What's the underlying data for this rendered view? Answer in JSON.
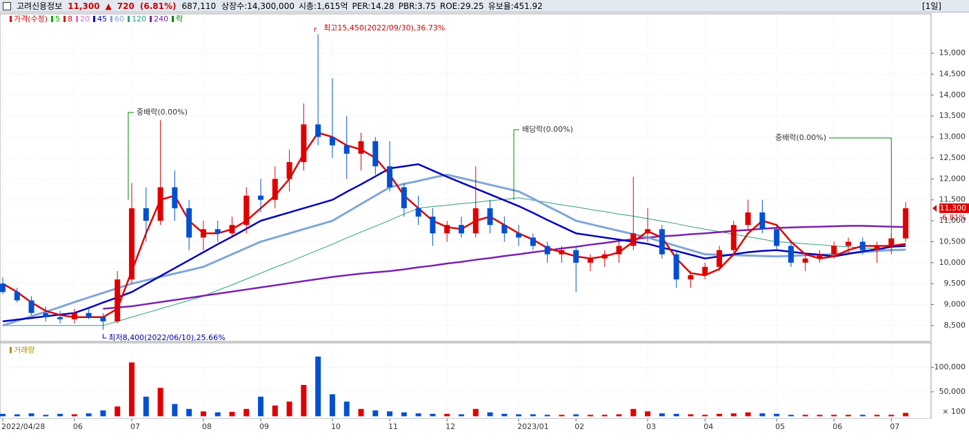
{
  "header": {
    "name": "고려신용정보",
    "price": "11,300",
    "arrow": "▲",
    "change": "720",
    "change_pct": "(6.81%)",
    "volume": "687,110",
    "stats": [
      "상장수:14,300,000",
      "시총:1,615억",
      "PER:14.28",
      "PBR:3.75",
      "ROE:29.25",
      "유보율:451.92"
    ],
    "period": "[1일]"
  },
  "chart_data": [
    {
      "type": "candlestick",
      "up_color": "#e00000",
      "down_color": "#0050d0",
      "legend": [
        {
          "label": "가격(수정)",
          "color": "#e00000"
        },
        {
          "label": "5",
          "color": "#00b000"
        },
        {
          "label": "8",
          "color": "#e00000"
        },
        {
          "label": "20",
          "color": "#e070d0"
        },
        {
          "label": "45",
          "color": "#0000c0"
        },
        {
          "label": "60",
          "color": "#7fa6d8"
        },
        {
          "label": "120",
          "color": "#2aa07a"
        },
        {
          "label": "240",
          "color": "#7a20b0"
        },
        {
          "label": "락",
          "color": "#008000"
        }
      ],
      "categories": [
        "2022/04/28",
        null,
        null,
        null,
        null,
        "06",
        null,
        null,
        null,
        "07",
        null,
        null,
        null,
        null,
        "08",
        null,
        null,
        null,
        "09",
        null,
        null,
        null,
        null,
        "10",
        null,
        null,
        null,
        "11",
        null,
        null,
        null,
        "12",
        null,
        null,
        null,
        null,
        "2023/01",
        null,
        null,
        null,
        "02",
        null,
        null,
        null,
        null,
        "03",
        null,
        null,
        null,
        "04",
        null,
        null,
        null,
        null,
        "05",
        null,
        null,
        null,
        "06",
        null,
        null,
        null,
        "07",
        null
      ],
      "open": [
        9500,
        9300,
        9100,
        8800,
        8700,
        8650,
        8800,
        8700,
        8600,
        9600,
        11300,
        11000,
        11800,
        11300,
        10600,
        10800,
        10700,
        10900,
        11600,
        11500,
        12000,
        12400,
        13300,
        13000,
        12800,
        12600,
        12900,
        12300,
        11800,
        11300,
        11100,
        10700,
        10900,
        10700,
        11300,
        10900,
        10700,
        10600,
        10400,
        10200,
        10300,
        10000,
        10100,
        10200,
        10400,
        10700,
        10800,
        10200,
        9600,
        9700,
        9900,
        10300,
        10900,
        11200,
        10800,
        10400,
        10000,
        10100,
        10200,
        10400,
        10500,
        10300,
        10400,
        10580
      ],
      "high": [
        9650,
        9400,
        9200,
        8950,
        8850,
        8900,
        8950,
        8800,
        9800,
        11900,
        11800,
        13400,
        12200,
        11500,
        11000,
        11000,
        11100,
        11800,
        12000,
        12300,
        12700,
        13800,
        15450,
        14400,
        13500,
        13100,
        13000,
        12900,
        11900,
        11600,
        11300,
        11000,
        11100,
        12300,
        11500,
        11100,
        10900,
        10700,
        10500,
        10400,
        10400,
        10200,
        10300,
        10500,
        12050,
        11300,
        10900,
        10300,
        9800,
        10000,
        10400,
        11000,
        11500,
        11500,
        10900,
        10500,
        10200,
        10300,
        10500,
        10600,
        10600,
        10500,
        10700,
        11450
      ],
      "low": [
        9250,
        9050,
        8750,
        8600,
        8550,
        8550,
        8650,
        8400,
        8550,
        9500,
        10500,
        10900,
        11000,
        10300,
        10300,
        10500,
        10600,
        10700,
        11200,
        11300,
        11700,
        12200,
        12800,
        12500,
        12000,
        12200,
        12100,
        11700,
        11100,
        10900,
        10400,
        10500,
        10600,
        10600,
        10700,
        10500,
        10400,
        10300,
        10000,
        10000,
        9300,
        9800,
        9900,
        10000,
        10300,
        10500,
        10100,
        9400,
        9400,
        9600,
        9800,
        10200,
        10800,
        10700,
        10300,
        9900,
        9800,
        10000,
        10100,
        10200,
        10200,
        10000,
        10200,
        10500
      ],
      "close": [
        9300,
        9100,
        8800,
        8700,
        8650,
        8800,
        8700,
        8600,
        9600,
        11300,
        11000,
        11800,
        11300,
        10600,
        10800,
        10700,
        10900,
        11600,
        11500,
        12000,
        12400,
        13300,
        13000,
        12800,
        12600,
        12900,
        12300,
        11800,
        11300,
        11100,
        10700,
        10900,
        10700,
        11300,
        10900,
        10700,
        10600,
        10400,
        10200,
        10300,
        10000,
        10100,
        10200,
        10400,
        10700,
        10800,
        10200,
        9600,
        9700,
        9900,
        10300,
        10900,
        11200,
        10800,
        10400,
        10000,
        10100,
        10200,
        10400,
        10500,
        10300,
        10400,
        10580,
        11300
      ],
      "series": [
        {
          "color": "#2aa07a",
          "width": 1,
          "values": [
            8500,
            8500,
            8500,
            8500,
            8500,
            8500,
            8500,
            8500,
            8600,
            8700,
            8800,
            8900,
            9000,
            9100,
            9200,
            9340,
            9470,
            9610,
            9750,
            9890,
            10020,
            10160,
            10300,
            10440,
            10590,
            10730,
            10870,
            11010,
            11160,
            11300,
            11340,
            11370,
            11410,
            11440,
            11480,
            11510,
            11550,
            11490,
            11440,
            11380,
            11330,
            11270,
            11220,
            11160,
            11110,
            11050,
            10990,
            10930,
            10860,
            10800,
            10740,
            10680,
            10620,
            10560,
            10500,
            10480,
            10450,
            10430,
            10400,
            10380,
            10350,
            10330,
            10300,
            10300
          ]
        },
        {
          "color": "#7a20b0",
          "width": 2.5,
          "values": [
            null,
            null,
            null,
            null,
            null,
            null,
            null,
            8900,
            8930,
            8960,
            9010,
            9060,
            9110,
            9160,
            9210,
            9260,
            9310,
            9360,
            9410,
            9460,
            9510,
            9560,
            9610,
            9660,
            9700,
            9740,
            9770,
            9800,
            9840,
            9890,
            9930,
            9980,
            10020,
            10070,
            10110,
            10160,
            10200,
            10250,
            10290,
            10340,
            10380,
            10430,
            10470,
            10520,
            10560,
            10600,
            10630,
            10650,
            10680,
            10700,
            10730,
            10760,
            10780,
            10810,
            10830,
            10840,
            10850,
            10860,
            10870,
            10880,
            10880,
            10870,
            10860,
            10850
          ]
        },
        {
          "color": "#7fa6d8",
          "width": 3,
          "values": [
            8500,
            8610,
            8720,
            8830,
            8940,
            9060,
            9170,
            9280,
            9390,
            9500,
            9580,
            9660,
            9740,
            9820,
            9900,
            10050,
            10200,
            10350,
            10500,
            10600,
            10700,
            10800,
            10900,
            11000,
            11200,
            11400,
            11600,
            11800,
            11880,
            11950,
            12030,
            12100,
            12020,
            11940,
            11860,
            11780,
            11700,
            11530,
            11350,
            11180,
            11000,
            10920,
            10840,
            10760,
            10680,
            10600,
            10500,
            10400,
            10300,
            10200,
            10190,
            10180,
            10170,
            10160,
            10150,
            10160,
            10180,
            10190,
            10200,
            10230,
            10250,
            10280,
            10300,
            10310
          ]
        },
        {
          "color": "#0000c0",
          "width": 2.5,
          "values": [
            8600,
            8640,
            8680,
            8720,
            8760,
            8800,
            8920,
            9050,
            9170,
            9300,
            9490,
            9680,
            9870,
            10060,
            10250,
            10440,
            10620,
            10810,
            11000,
            11100,
            11200,
            11300,
            11400,
            11500,
            11690,
            11870,
            12060,
            12250,
            12300,
            12350,
            12200,
            12050,
            11910,
            11770,
            11630,
            11490,
            11350,
            11190,
            11020,
            10860,
            10700,
            10650,
            10600,
            10550,
            10500,
            10450,
            10360,
            10280,
            10190,
            10100,
            10150,
            10200,
            10250,
            10280,
            10300,
            10260,
            10220,
            10190,
            10150,
            10210,
            10270,
            10320,
            10380,
            10400
          ]
        },
        {
          "color": "#e00000",
          "width": 2.5,
          "values": [
            9500,
            9300,
            9050,
            8850,
            8750,
            8700,
            8700,
            8700,
            8900,
            9800,
            10700,
            11500,
            11600,
            11000,
            10700,
            10700,
            10800,
            11000,
            11300,
            11600,
            12000,
            12600,
            13100,
            13000,
            12800,
            12700,
            12500,
            12100,
            11600,
            11300,
            11000,
            10850,
            10800,
            11000,
            11100,
            10900,
            10700,
            10550,
            10350,
            10250,
            10150,
            10100,
            10150,
            10250,
            10500,
            10750,
            10600,
            10100,
            9750,
            9700,
            9850,
            10200,
            10700,
            11000,
            10900,
            10500,
            10200,
            10100,
            10150,
            10300,
            10400,
            10400,
            10400,
            10450
          ]
        }
      ],
      "annotations": [
        {
          "text": "최고15,450(2022/09/30),36.73%",
          "index": 22
        },
        {
          "text": "최저8,400(2022/06/10),25.66%",
          "index": 7
        },
        {
          "text": "중배락(0.00%)",
          "index": 9
        },
        {
          "text": "배당락(0.00%)",
          "index": 36
        },
        {
          "text": "중배락(0.00%)",
          "index": 62
        }
      ],
      "last": {
        "value": 11300,
        "label": "11,300"
      },
      "last_change": "6.81%",
      "ylim": [
        8120,
        15940
      ],
      "yticks": [
        {
          "value": 8500,
          "label": "8,500"
        },
        {
          "value": 9000,
          "label": "9,000"
        },
        {
          "value": 9500,
          "label": "9,500"
        },
        {
          "value": 10000,
          "label": "10,000"
        },
        {
          "value": 10500,
          "label": "10,500"
        },
        {
          "value": 11000,
          "label": "11,000"
        },
        {
          "value": 11500,
          "label": "11,500"
        },
        {
          "value": 12000,
          "label": "12,000"
        },
        {
          "value": 12500,
          "label": "12,500"
        },
        {
          "value": 13000,
          "label": "13,000"
        },
        {
          "value": 13500,
          "label": "13,500"
        },
        {
          "value": 14000,
          "label": "14,000"
        },
        {
          "value": 14500,
          "label": "14,500"
        },
        {
          "value": 15000,
          "label": "15,000"
        }
      ],
      "grid": true
    },
    {
      "type": "bar",
      "legend": "거래량",
      "unit": "× 100",
      "up_color": "#e00000",
      "down_color": "#0050d0",
      "values": [
        5000,
        4000,
        6000,
        3000,
        5000,
        4000,
        6000,
        12000,
        20000,
        110000,
        40000,
        58000,
        25000,
        15000,
        10000,
        8000,
        9000,
        15000,
        40000,
        22000,
        30000,
        64000,
        122000,
        45000,
        30000,
        15000,
        12000,
        10000,
        8000,
        6000,
        5000,
        5000,
        4000,
        15000,
        8000,
        5000,
        4000,
        4000,
        3000,
        3000,
        4000,
        3000,
        3000,
        4000,
        15000,
        10000,
        6000,
        5000,
        4000,
        3000,
        5000,
        6000,
        8000,
        6000,
        5000,
        3000,
        3000,
        3000,
        3000,
        3000,
        3000,
        3000,
        3000,
        6871
      ],
      "ylim": [
        -5000,
        150000
      ],
      "yticks": [
        {
          "value": 50000,
          "label": "50,000"
        },
        {
          "value": 100000,
          "label": "100,000"
        }
      ],
      "grid": true
    }
  ]
}
